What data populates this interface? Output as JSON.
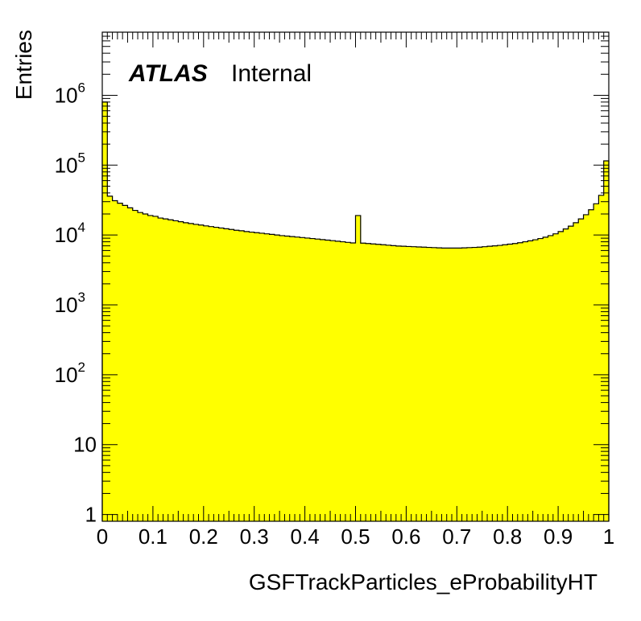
{
  "chart_data": {
    "type": "histogram",
    "title": "",
    "label_main": "ATLAS",
    "label_sub": "Internal",
    "xlabel": "GSFTrackParticles_eProbabilityHT",
    "ylabel": "Entries",
    "xlim": [
      0,
      1
    ],
    "ylim": [
      0.8,
      8000000
    ],
    "y_scale": "log",
    "x_ticks": [
      "0",
      "0.1",
      "0.2",
      "0.3",
      "0.4",
      "0.5",
      "0.6",
      "0.7",
      "0.8",
      "0.9",
      "1"
    ],
    "y_ticks": [
      {
        "value": 1,
        "base": "1",
        "exp": ""
      },
      {
        "value": 10,
        "base": "10",
        "exp": ""
      },
      {
        "value": 100,
        "base": "10",
        "exp": "2"
      },
      {
        "value": 1000,
        "base": "10",
        "exp": "3"
      },
      {
        "value": 10000,
        "base": "10",
        "exp": "4"
      },
      {
        "value": 100000,
        "base": "10",
        "exp": "5"
      },
      {
        "value": 1000000,
        "base": "10",
        "exp": "6"
      }
    ],
    "fill_color": "#ffff00",
    "line_color": "#000000",
    "bins": 100,
    "bin_width": 0.01,
    "values": [
      800000,
      36000,
      31000,
      28500,
      26500,
      24500,
      22500,
      21000,
      20000,
      19000,
      18500,
      17500,
      17000,
      16500,
      16000,
      15500,
      15000,
      14600,
      14200,
      13900,
      13500,
      13200,
      12900,
      12600,
      12300,
      12000,
      11700,
      11500,
      11200,
      11000,
      10800,
      10600,
      10400,
      10200,
      10000,
      9800,
      9650,
      9500,
      9350,
      9200,
      9050,
      8900,
      8750,
      8600,
      8450,
      8300,
      8150,
      8000,
      7850,
      7700,
      19000,
      7650,
      7550,
      7450,
      7350,
      7250,
      7150,
      7050,
      6950,
      6900,
      6850,
      6800,
      6750,
      6700,
      6650,
      6600,
      6550,
      6500,
      6500,
      6500,
      6500,
      6550,
      6600,
      6650,
      6700,
      6800,
      6900,
      7000,
      7100,
      7250,
      7400,
      7550,
      7750,
      8000,
      8250,
      8550,
      8900,
      9300,
      9800,
      10400,
      11200,
      12200,
      13400,
      15000,
      17000,
      19500,
      23000,
      28000,
      37000,
      115000
    ]
  }
}
